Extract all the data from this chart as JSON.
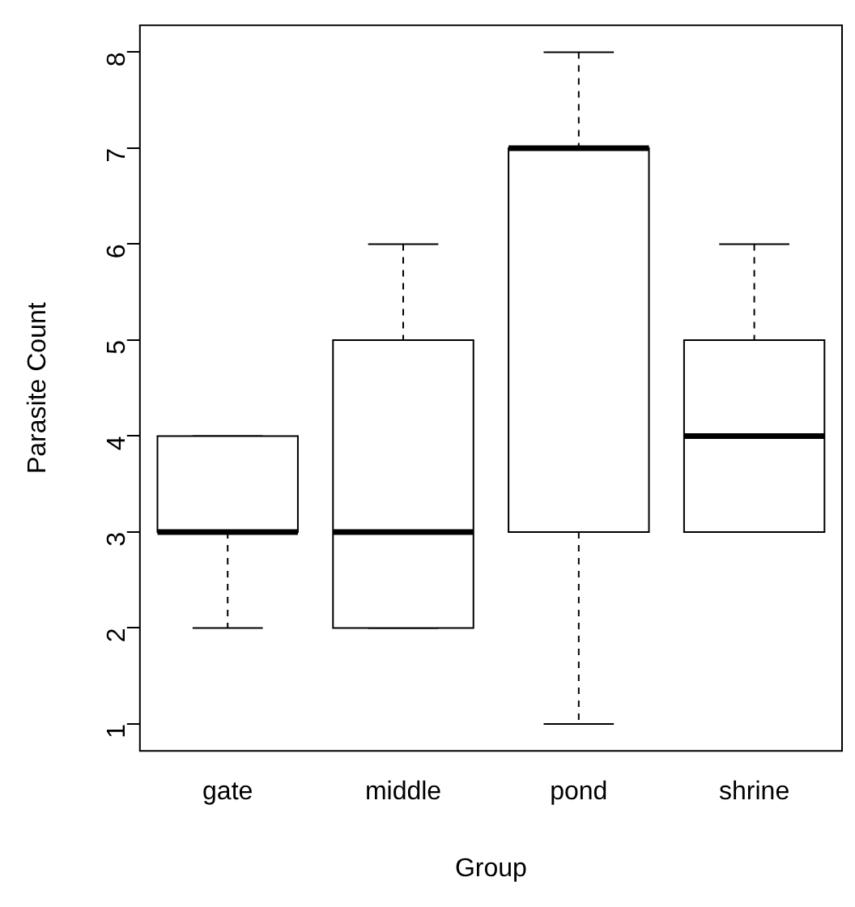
{
  "chart_data": {
    "type": "box",
    "xlabel": "Group",
    "ylabel": "Parasite Count",
    "categories": [
      "gate",
      "middle",
      "pond",
      "shrine"
    ],
    "boxes": [
      {
        "low": 2,
        "q1": 3,
        "median": 3,
        "q3": 4,
        "high": 4
      },
      {
        "low": 2,
        "q1": 2,
        "median": 3,
        "q3": 5,
        "high": 6
      },
      {
        "low": 1,
        "q1": 3,
        "median": 7,
        "q3": 7,
        "high": 8
      },
      {
        "low": 3,
        "q1": 3,
        "median": 4,
        "q3": 5,
        "high": 6
      }
    ],
    "ylim": [
      0.72,
      8.28
    ],
    "yticks": [
      1,
      2,
      3,
      4,
      5,
      6,
      7,
      8
    ],
    "grid": false
  }
}
